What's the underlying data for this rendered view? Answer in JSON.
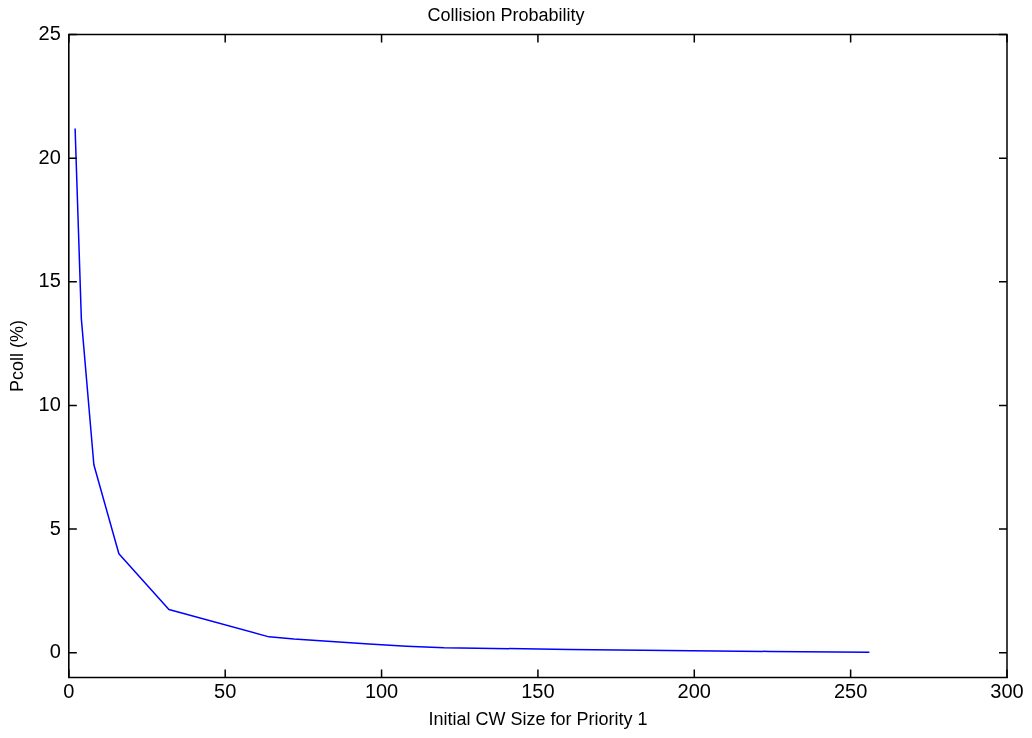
{
  "chart_data": {
    "type": "line",
    "title": "Collision Probability",
    "xlabel": "Initial CW Size for Priority 1",
    "ylabel": "Pcoll (%)",
    "x": [
      2,
      4,
      8,
      16,
      32,
      64,
      72,
      84,
      96,
      108,
      120,
      160,
      224,
      256
    ],
    "series": [
      {
        "color": "#0000ff",
        "values": [
          21.2,
          13.5,
          7.6,
          4.0,
          1.75,
          0.64,
          0.55,
          0.45,
          0.35,
          0.26,
          0.2,
          0.13,
          0.05,
          0.02
        ]
      }
    ],
    "xlim": [
      0,
      300
    ],
    "xticks": [
      0,
      50,
      100,
      150,
      200,
      250,
      300
    ],
    "ylim": [
      -1,
      25
    ],
    "yticks": [
      0,
      5,
      10,
      15,
      20,
      25
    ],
    "grid": false,
    "legend": false,
    "marker": "none"
  }
}
